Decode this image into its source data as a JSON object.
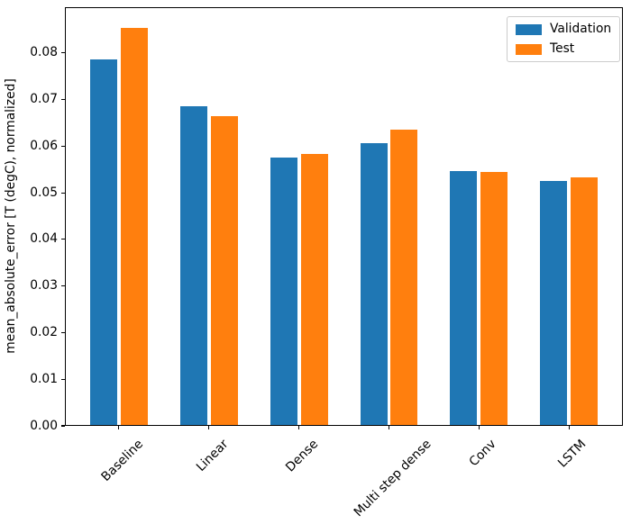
{
  "chart_data": {
    "type": "bar",
    "title": "",
    "xlabel": "",
    "ylabel": "mean_absolute_error [T (degC), normalized]",
    "categories": [
      "Baseline",
      "Linear",
      "Dense",
      "Multi step dense",
      "Conv",
      "LSTM"
    ],
    "series": [
      {
        "name": "Validation",
        "color": "#1f77b4",
        "values": [
          0.0787,
          0.0686,
          0.0575,
          0.0607,
          0.0547,
          0.0525
        ]
      },
      {
        "name": "Test",
        "color": "#ff7f0e",
        "values": [
          0.0853,
          0.0664,
          0.0584,
          0.0635,
          0.0545,
          0.0533
        ]
      }
    ],
    "yticks": [
      0,
      0.01,
      0.02,
      0.03,
      0.04,
      0.05,
      0.06,
      0.07,
      0.08
    ],
    "ylim": [
      0,
      0.0898
    ],
    "xlim": [
      -0.6,
      5.6
    ],
    "bar_width": 0.3,
    "bar_offset": 0.17,
    "x_tick_rotation": 45,
    "grid": false,
    "legend_position": "upper right",
    "background_color": "#ffffff",
    "axis_color": "#000000",
    "legend_border_color": "#cccccc"
  }
}
